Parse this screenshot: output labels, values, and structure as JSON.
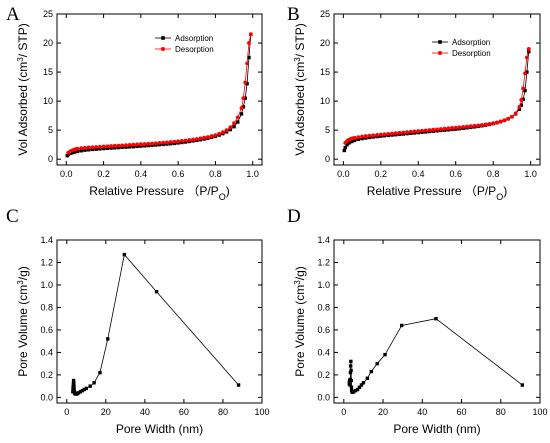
{
  "chart_data": [
    {
      "panel": "A",
      "type": "line",
      "xlabel": "Relative Pressure （P/P",
      "xlabel_sub": "O",
      "xlabel_end": ")",
      "ylabel": "Vol Adsorbed (cm",
      "ylabel_sup": "3",
      "ylabel_end": "/ STP)",
      "xlim": [
        -0.05,
        1.05
      ],
      "ylim": [
        -1,
        25
      ],
      "xticks": [
        0.0,
        0.2,
        0.4,
        0.6,
        0.8,
        1.0
      ],
      "xtick_labels": [
        "0.0",
        "0.2",
        "0.4",
        "0.6",
        "0.8",
        "1.0"
      ],
      "yticks": [
        0,
        5,
        10,
        15,
        20,
        25
      ],
      "ytick_labels": [
        "0",
        "5",
        "10",
        "15",
        "20",
        "25"
      ],
      "legend_position": "top-right",
      "series": [
        {
          "name": "Adsorption",
          "color": "#000000",
          "marker": "square",
          "x": [
            0.005,
            0.01,
            0.02,
            0.03,
            0.04,
            0.05,
            0.06,
            0.08,
            0.1,
            0.12,
            0.14,
            0.16,
            0.18,
            0.2,
            0.22,
            0.24,
            0.26,
            0.28,
            0.3,
            0.32,
            0.34,
            0.36,
            0.38,
            0.4,
            0.42,
            0.44,
            0.46,
            0.48,
            0.5,
            0.52,
            0.54,
            0.56,
            0.58,
            0.6,
            0.62,
            0.64,
            0.66,
            0.68,
            0.7,
            0.72,
            0.74,
            0.76,
            0.78,
            0.8,
            0.82,
            0.84,
            0.86,
            0.88,
            0.9,
            0.92,
            0.94,
            0.95,
            0.96,
            0.97,
            0.98,
            0.99
          ],
          "y": [
            0.6,
            0.8,
            1.0,
            1.1,
            1.2,
            1.3,
            1.35,
            1.45,
            1.55,
            1.62,
            1.68,
            1.73,
            1.78,
            1.83,
            1.88,
            1.92,
            1.96,
            2.0,
            2.04,
            2.08,
            2.12,
            2.16,
            2.2,
            2.25,
            2.3,
            2.35,
            2.4,
            2.45,
            2.5,
            2.55,
            2.6,
            2.66,
            2.72,
            2.8,
            2.88,
            2.96,
            3.05,
            3.15,
            3.25,
            3.35,
            3.48,
            3.62,
            3.78,
            3.95,
            4.15,
            4.4,
            4.7,
            5.1,
            5.6,
            6.4,
            7.8,
            9.0,
            10.5,
            13.0,
            17.5,
            21.5
          ]
        },
        {
          "name": "Desorption",
          "color": "#ff0000",
          "marker": "circle",
          "x": [
            0.99,
            0.98,
            0.97,
            0.96,
            0.95,
            0.94,
            0.92,
            0.9,
            0.88,
            0.86,
            0.84,
            0.82,
            0.8,
            0.78,
            0.76,
            0.74,
            0.72,
            0.7,
            0.68,
            0.66,
            0.64,
            0.62,
            0.6,
            0.58,
            0.56,
            0.54,
            0.52,
            0.5,
            0.48,
            0.46,
            0.44,
            0.42,
            0.4,
            0.38,
            0.36,
            0.34,
            0.32,
            0.3,
            0.28,
            0.26,
            0.24,
            0.22,
            0.2,
            0.18,
            0.16,
            0.14,
            0.12,
            0.1,
            0.08,
            0.06,
            0.05,
            0.04,
            0.03,
            0.02,
            0.01
          ],
          "y": [
            21.5,
            20.0,
            16.5,
            13.2,
            10.5,
            8.8,
            7.2,
            6.2,
            5.5,
            5.0,
            4.65,
            4.38,
            4.15,
            3.98,
            3.82,
            3.7,
            3.58,
            3.48,
            3.38,
            3.3,
            3.22,
            3.15,
            3.08,
            3.02,
            2.96,
            2.9,
            2.85,
            2.8,
            2.75,
            2.7,
            2.66,
            2.62,
            2.58,
            2.54,
            2.5,
            2.46,
            2.42,
            2.38,
            2.34,
            2.3,
            2.26,
            2.22,
            2.18,
            2.14,
            2.1,
            2.06,
            2.02,
            1.97,
            1.9,
            1.8,
            1.72,
            1.62,
            1.5,
            1.35,
            1.1
          ]
        }
      ]
    },
    {
      "panel": "B",
      "type": "line",
      "xlabel": "Relative Pressure （P/P",
      "xlabel_sub": "O",
      "xlabel_end": ")",
      "ylabel": "Vol Adsorbed (cm",
      "ylabel_sup": "3",
      "ylabel_end": "/ STP)",
      "xlim": [
        -0.05,
        1.05
      ],
      "ylim": [
        -1,
        25
      ],
      "xticks": [
        0.0,
        0.2,
        0.4,
        0.6,
        0.8,
        1.0
      ],
      "xtick_labels": [
        "0.0",
        "0.2",
        "0.4",
        "0.6",
        "0.8",
        "1.0"
      ],
      "yticks": [
        0,
        5,
        10,
        15,
        20,
        25
      ],
      "ytick_labels": [
        "0",
        "5",
        "10",
        "15",
        "20",
        "25"
      ],
      "legend_position": "top-right",
      "series": [
        {
          "name": "Adsorption",
          "color": "#000000",
          "marker": "square",
          "x": [
            0.005,
            0.01,
            0.02,
            0.03,
            0.04,
            0.05,
            0.06,
            0.08,
            0.1,
            0.12,
            0.14,
            0.16,
            0.18,
            0.2,
            0.22,
            0.24,
            0.26,
            0.28,
            0.3,
            0.32,
            0.34,
            0.36,
            0.38,
            0.4,
            0.42,
            0.44,
            0.46,
            0.48,
            0.5,
            0.52,
            0.54,
            0.56,
            0.58,
            0.6,
            0.62,
            0.64,
            0.66,
            0.68,
            0.7,
            0.72,
            0.74,
            0.76,
            0.78,
            0.8,
            0.82,
            0.84,
            0.86,
            0.88,
            0.9,
            0.92,
            0.94,
            0.95,
            0.96,
            0.97,
            0.98,
            0.99
          ],
          "y": [
            1.5,
            2.0,
            2.5,
            2.8,
            3.0,
            3.15,
            3.25,
            3.42,
            3.55,
            3.65,
            3.74,
            3.82,
            3.9,
            3.97,
            4.04,
            4.1,
            4.16,
            4.22,
            4.28,
            4.34,
            4.4,
            4.46,
            4.52,
            4.58,
            4.64,
            4.7,
            4.76,
            4.82,
            4.88,
            4.94,
            5.0,
            5.06,
            5.12,
            5.18,
            5.25,
            5.32,
            5.4,
            5.48,
            5.56,
            5.65,
            5.75,
            5.86,
            5.98,
            6.12,
            6.28,
            6.46,
            6.68,
            6.95,
            7.3,
            7.8,
            8.6,
            9.3,
            10.3,
            11.8,
            15.0,
            18.5
          ]
        },
        {
          "name": "Desorption",
          "color": "#ff0000",
          "marker": "circle",
          "x": [
            0.99,
            0.98,
            0.97,
            0.96,
            0.95,
            0.94,
            0.92,
            0.9,
            0.88,
            0.86,
            0.84,
            0.82,
            0.8,
            0.78,
            0.76,
            0.74,
            0.72,
            0.7,
            0.68,
            0.66,
            0.64,
            0.62,
            0.6,
            0.58,
            0.56,
            0.54,
            0.52,
            0.5,
            0.48,
            0.46,
            0.44,
            0.42,
            0.4,
            0.38,
            0.36,
            0.34,
            0.32,
            0.3,
            0.28,
            0.26,
            0.24,
            0.22,
            0.2,
            0.18,
            0.16,
            0.14,
            0.12,
            0.1,
            0.08,
            0.06,
            0.05,
            0.04,
            0.03,
            0.02,
            0.01
          ],
          "y": [
            19.0,
            17.5,
            14.8,
            12.2,
            10.2,
            9.0,
            7.9,
            7.3,
            6.95,
            6.7,
            6.5,
            6.34,
            6.2,
            6.08,
            5.98,
            5.9,
            5.82,
            5.75,
            5.68,
            5.62,
            5.56,
            5.5,
            5.44,
            5.38,
            5.32,
            5.26,
            5.2,
            5.14,
            5.08,
            5.02,
            4.96,
            4.9,
            4.84,
            4.78,
            4.72,
            4.66,
            4.6,
            4.54,
            4.48,
            4.42,
            4.36,
            4.3,
            4.24,
            4.18,
            4.12,
            4.05,
            3.98,
            3.9,
            3.8,
            3.68,
            3.6,
            3.5,
            3.36,
            3.15,
            2.8
          ]
        }
      ]
    },
    {
      "panel": "C",
      "type": "line",
      "xlabel": "Pore Width (nm)",
      "ylabel": "Pore Volume (cm",
      "ylabel_sup": "3",
      "ylabel_end": "/g)",
      "xlim": [
        -5,
        100
      ],
      "ylim": [
        -0.05,
        1.4
      ],
      "xticks": [
        0,
        20,
        40,
        60,
        80,
        100
      ],
      "xtick_labels": [
        "0",
        "20",
        "40",
        "60",
        "80",
        "100"
      ],
      "yticks": [
        0.0,
        0.2,
        0.4,
        0.6,
        0.8,
        1.0,
        1.2,
        1.4
      ],
      "ytick_labels": [
        "0.0",
        "0.2",
        "0.4",
        "0.6",
        "0.8",
        "1.0",
        "1.2",
        "1.4"
      ],
      "series": [
        {
          "name": "",
          "color": "#000000",
          "marker": "square",
          "x": [
            3.1,
            3.2,
            3.3,
            3.4,
            3.5,
            3.6,
            3.7,
            3.8,
            3.9,
            4.0,
            4.2,
            4.5,
            5.0,
            5.5,
            6.0,
            7.0,
            8.0,
            9.0,
            10.0,
            12.0,
            14.0,
            17.0,
            21.0,
            29.5,
            46.0,
            88.0
          ],
          "y": [
            0.05,
            0.08,
            0.1,
            0.12,
            0.15,
            0.13,
            0.1,
            0.07,
            0.05,
            0.04,
            0.035,
            0.03,
            0.03,
            0.035,
            0.04,
            0.05,
            0.06,
            0.07,
            0.08,
            0.1,
            0.13,
            0.22,
            0.52,
            1.27,
            0.94,
            0.11
          ]
        }
      ]
    },
    {
      "panel": "D",
      "type": "line",
      "xlabel": "Pore Width (nm)",
      "ylabel": "Pore Volume (cm",
      "ylabel_sup": "3",
      "ylabel_end": "/g)",
      "xlim": [
        -5,
        100
      ],
      "ylim": [
        -0.05,
        1.4
      ],
      "xticks": [
        0,
        20,
        40,
        60,
        80,
        100
      ],
      "xtick_labels": [
        "0",
        "20",
        "40",
        "60",
        "80",
        "100"
      ],
      "yticks": [
        0.0,
        0.2,
        0.4,
        0.6,
        0.8,
        1.0,
        1.2,
        1.4
      ],
      "ytick_labels": [
        "0.0",
        "0.2",
        "0.4",
        "0.6",
        "0.8",
        "1.0",
        "1.2",
        "1.4"
      ],
      "series": [
        {
          "name": "",
          "color": "#000000",
          "marker": "square",
          "x": [
            2.8,
            2.9,
            3.0,
            3.1,
            3.2,
            3.3,
            3.4,
            3.5,
            3.6,
            3.7,
            3.8,
            3.9,
            4.0,
            4.2,
            4.5,
            5.0,
            6.0,
            7.0,
            8.0,
            9.0,
            10.0,
            12.0,
            14.0,
            17.0,
            21.0,
            29.5,
            47.0,
            91.0
          ],
          "y": [
            0.12,
            0.14,
            0.15,
            0.13,
            0.11,
            0.16,
            0.22,
            0.28,
            0.32,
            0.24,
            0.15,
            0.09,
            0.06,
            0.05,
            0.045,
            0.05,
            0.06,
            0.07,
            0.09,
            0.11,
            0.13,
            0.17,
            0.23,
            0.3,
            0.38,
            0.64,
            0.7,
            0.11
          ]
        }
      ]
    }
  ],
  "legend_panels": [
    "A",
    "B"
  ]
}
